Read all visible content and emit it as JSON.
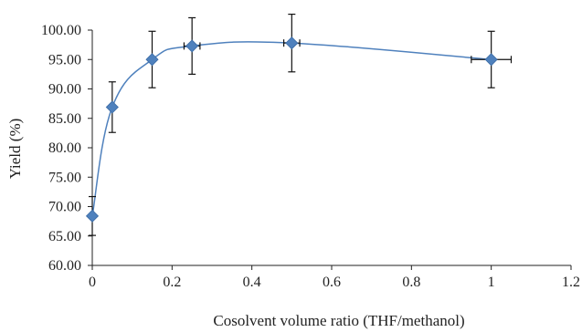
{
  "chart_data": {
    "type": "scatter",
    "xlabel": "Cosolvent volume ratio (THF/methanol)",
    "ylabel": "Yield (%)",
    "xlim": [
      0,
      1.2
    ],
    "ylim": [
      60,
      100
    ],
    "x_ticks": [
      "0",
      "0.2",
      "0.4",
      "0.6",
      "0.8",
      "1",
      "1.2"
    ],
    "y_ticks": [
      "60.00",
      "65.00",
      "70.00",
      "75.00",
      "80.00",
      "85.00",
      "90.00",
      "95.00",
      "100.00"
    ],
    "grid": false,
    "smooth_line": true,
    "colors": {
      "marker": "#4f81bd",
      "line": "#4f81bd",
      "error_bar": "#111111"
    },
    "series": [
      {
        "x": [
          0,
          0.05,
          0.15,
          0.25,
          0.5,
          1.0
        ],
        "y": [
          68.4,
          86.9,
          95.0,
          97.3,
          97.8,
          95.0
        ],
        "y_err": [
          3.3,
          4.3,
          4.8,
          4.8,
          4.9,
          4.8
        ],
        "x_err": [
          0,
          0,
          0,
          0.02,
          0.02,
          0.05
        ]
      }
    ]
  }
}
